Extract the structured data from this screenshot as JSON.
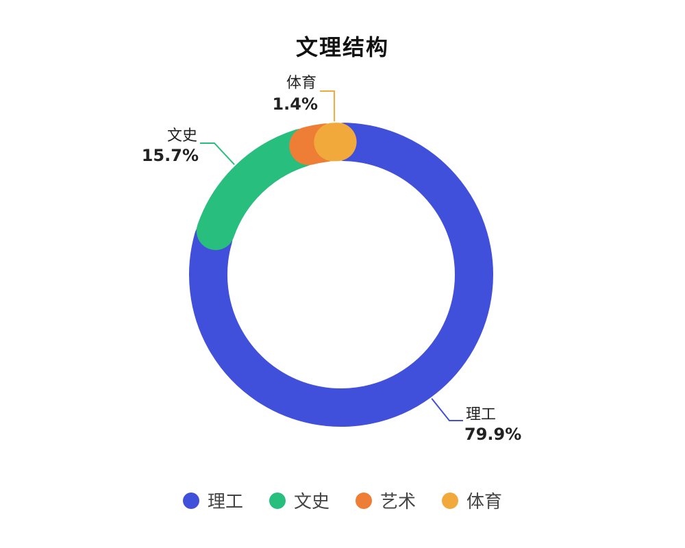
{
  "chart_data": {
    "type": "pie",
    "title": "文理结构",
    "series": [
      {
        "name": "理工",
        "value": 79.9,
        "label": "79.9%",
        "color": "#4150DA"
      },
      {
        "name": "文史",
        "value": 15.7,
        "label": "15.7%",
        "color": "#27BE7E"
      },
      {
        "name": "艺术",
        "value": 3.0,
        "color": "#EE7D35"
      },
      {
        "name": "体育",
        "value": 1.4,
        "label": "1.4%",
        "color": "#F1A93B"
      }
    ],
    "legend_position": "bottom"
  }
}
